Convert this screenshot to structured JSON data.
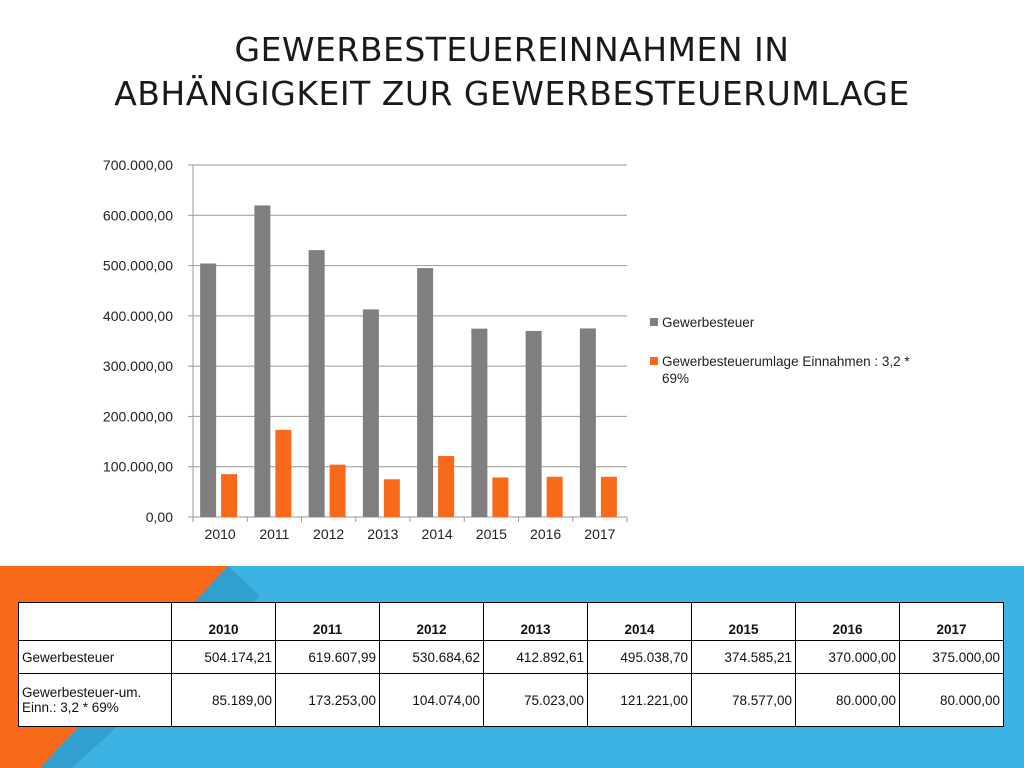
{
  "title": {
    "line1": "GEWERBESTEUEREINNAHMEN IN",
    "line2": "ABHÄNGIGKEIT ZUR GEWERBESTEUERUMLAGE"
  },
  "colors": {
    "series1": "#7f7f7f",
    "series2": "#f86a1a",
    "band_orange": "#f86a1a",
    "band_blue": "#3cb3e2"
  },
  "chart_data": {
    "type": "bar",
    "categories": [
      "2010",
      "2011",
      "2012",
      "2013",
      "2014",
      "2015",
      "2016",
      "2017"
    ],
    "series": [
      {
        "name": "Gewerbesteuer",
        "values": [
          504174.21,
          619607.99,
          530684.62,
          412892.61,
          495038.7,
          374585.21,
          370000.0,
          375000.0
        ]
      },
      {
        "name": "Gewerbesteuerumlage Einnahmen : 3,2 * 69%",
        "values": [
          85189.0,
          173253.0,
          104074.0,
          75023.0,
          121221.0,
          78577.0,
          80000.0,
          80000.0
        ]
      }
    ],
    "ylim": [
      0,
      700000
    ],
    "yticks": [
      "0,00",
      "100.000,00",
      "200.000,00",
      "300.000,00",
      "400.000,00",
      "500.000,00",
      "600.000,00",
      "700.000,00"
    ],
    "grid": true,
    "legend_position": "right"
  },
  "table": {
    "headers": [
      "",
      "2010",
      "2011",
      "2012",
      "2013",
      "2014",
      "2015",
      "2016",
      "2017"
    ],
    "rows": [
      {
        "label": "Gewerbesteuer",
        "values": [
          "504.174,21",
          "619.607,99",
          "530.684,62",
          "412.892,61",
          "495.038,70",
          "374.585,21",
          "370.000,00",
          "375.000,00"
        ]
      },
      {
        "label_line1": "Gewerbesteuer-um.",
        "label_line2": "Einn.: 3,2 * 69%",
        "values": [
          "85.189,00",
          "173.253,00",
          "104.074,00",
          "75.023,00",
          "121.221,00",
          "78.577,00",
          "80.000,00",
          "80.000,00"
        ]
      }
    ]
  }
}
